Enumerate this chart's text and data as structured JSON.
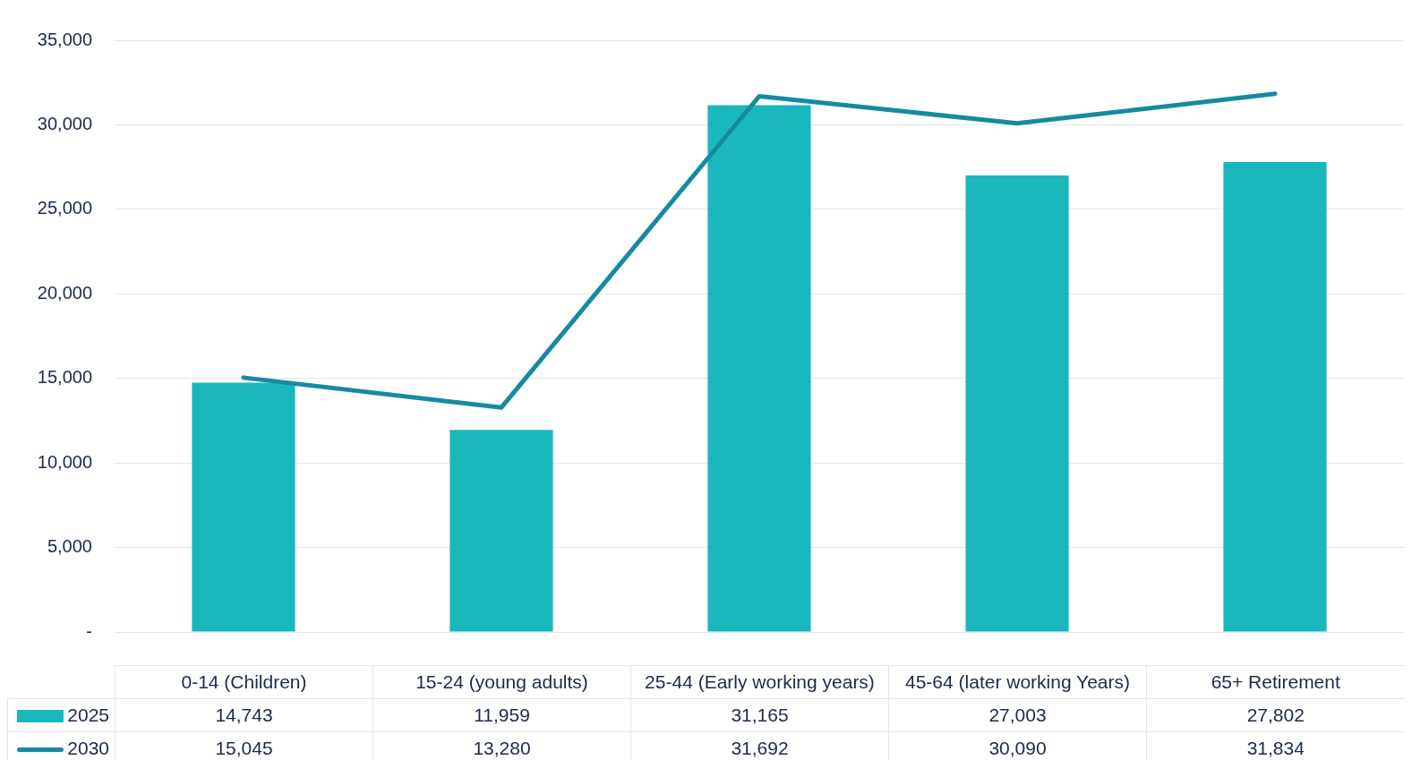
{
  "chart_data": {
    "type": "bar",
    "categories": [
      "0-14 (Children)",
      "15-24 (young adults)",
      "25-44 (Early working years)",
      "45-64 (later working Years)",
      "65+ Retirement"
    ],
    "series": [
      {
        "name": "2025",
        "color": "#1ab8bc",
        "values": [
          14743,
          11959,
          31165,
          27003,
          27802
        ],
        "value_labels": [
          "14,743",
          "11,959",
          "31,165",
          "27,003",
          "27,802"
        ]
      },
      {
        "name": "2030",
        "type": "line",
        "color": "#168aa3",
        "values": [
          15045,
          13280,
          31692,
          30090,
          31834
        ],
        "value_labels": [
          "15,045",
          "13,280",
          "31,692",
          "30,090",
          "31,834"
        ]
      }
    ],
    "ylim": [
      0,
      35000
    ],
    "yticks": [
      {
        "value": 0,
        "label": "-"
      },
      {
        "value": 5000,
        "label": "5,000"
      },
      {
        "value": 10000,
        "label": "10,000"
      },
      {
        "value": 15000,
        "label": "15,000"
      },
      {
        "value": 20000,
        "label": "20,000"
      },
      {
        "value": 25000,
        "label": "25,000"
      },
      {
        "value": 30000,
        "label": "30,000"
      },
      {
        "value": 35000,
        "label": "35,000"
      }
    ],
    "grid": "y",
    "legend": "bottom left",
    "marker": "none"
  }
}
